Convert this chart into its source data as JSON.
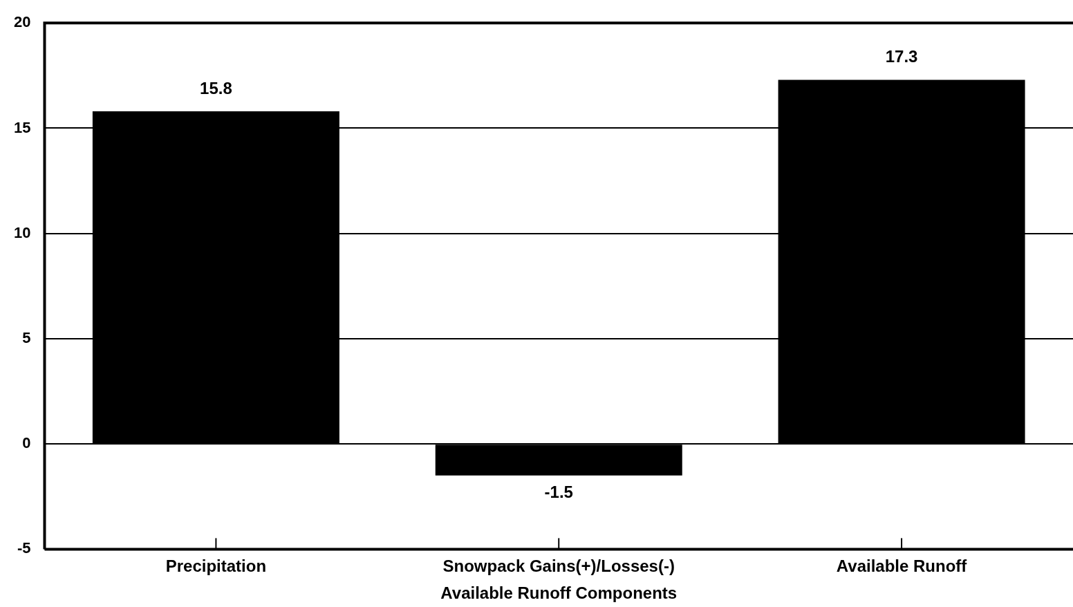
{
  "chart_data": {
    "type": "bar",
    "xlabel": "Available Runoff Components",
    "categories": [
      "Precipitation",
      "Snowpack Gains(+)/Losses(-)",
      "Available Runoff"
    ],
    "values": [
      15.8,
      -1.5,
      17.3
    ],
    "color": "#000000",
    "ylim": [
      -5,
      20
    ],
    "yticks": [
      -5,
      0,
      5,
      10,
      15,
      20
    ],
    "grid": "y",
    "data_labels": true,
    "legend": false
  }
}
